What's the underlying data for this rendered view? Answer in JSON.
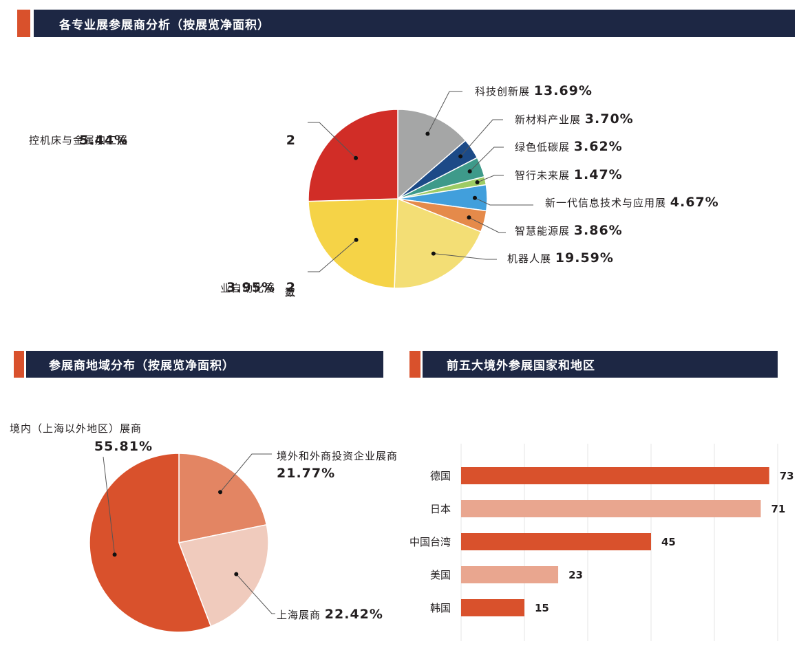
{
  "sections": {
    "top": {
      "title": "各专业展参展商分析（按展览净面积）"
    },
    "left": {
      "title": "参展商地域分布（按展览净面积）"
    },
    "right": {
      "title": "前五大境外参展国家和地区"
    }
  },
  "colors": {
    "accent": "#d9512c",
    "header_bg": "#1d2744"
  },
  "chart_data": [
    {
      "type": "pie",
      "title": "各专业展参展商分析（按展览净面积）",
      "start": "top, clockwise",
      "slices": [
        {
          "label": "科技创新展",
          "value": 13.69,
          "display": "13.69%",
          "color": "#a5a6a6"
        },
        {
          "label": "新材料产业展",
          "value": 3.7,
          "display": "3.70%",
          "color": "#1c4a87"
        },
        {
          "label": "绿色低碳展",
          "value": 3.62,
          "display": "3.62%",
          "color": "#3e9a8a"
        },
        {
          "label": "智行未来展",
          "value": 1.47,
          "display": "1.47%",
          "color": "#9dcb64"
        },
        {
          "label": "新一代信息技术与应用展",
          "value": 4.67,
          "display": "4.67%",
          "color": "#419fdc"
        },
        {
          "label": "智慧能源展",
          "value": 3.86,
          "display": "3.86%",
          "color": "#e58a4a"
        },
        {
          "label": "机器人展",
          "value": 19.59,
          "display": "19.59%",
          "color": "#f3de75"
        },
        {
          "label": "工业自动化展",
          "value": 23.95,
          "display": "23.95%",
          "color": "#f5d347"
        },
        {
          "label": "数控机床与金属加工展",
          "value": 25.44,
          "display": "25.44%",
          "color": "#d12d27"
        }
      ]
    },
    {
      "type": "pie",
      "title": "参展商地域分布（按展览净面积）",
      "start": "top, clockwise",
      "slices": [
        {
          "label": "境外和外商投资企业展商",
          "value": 21.77,
          "display": "21.77%",
          "color": "#e38563"
        },
        {
          "label": "上海展商",
          "value": 22.42,
          "display": "22.42%",
          "color": "#f0cbbd"
        },
        {
          "label": "境内（上海以外地区）展商",
          "value": 55.81,
          "display": "55.81%",
          "color": "#d9512c"
        }
      ]
    },
    {
      "type": "bar",
      "orientation": "horizontal",
      "title": "前五大境外参展国家和地区",
      "categories": [
        "德国",
        "日本",
        "中国台湾",
        "美国",
        "韩国"
      ],
      "values": [
        73,
        71,
        45,
        23,
        15
      ],
      "colors": [
        "#d9512c",
        "#e9a68f",
        "#d9512c",
        "#e9a68f",
        "#d9512c"
      ],
      "xlim": [
        0,
        75
      ],
      "grid": true,
      "grid_step": 15,
      "xlabel": "",
      "ylabel": ""
    }
  ]
}
